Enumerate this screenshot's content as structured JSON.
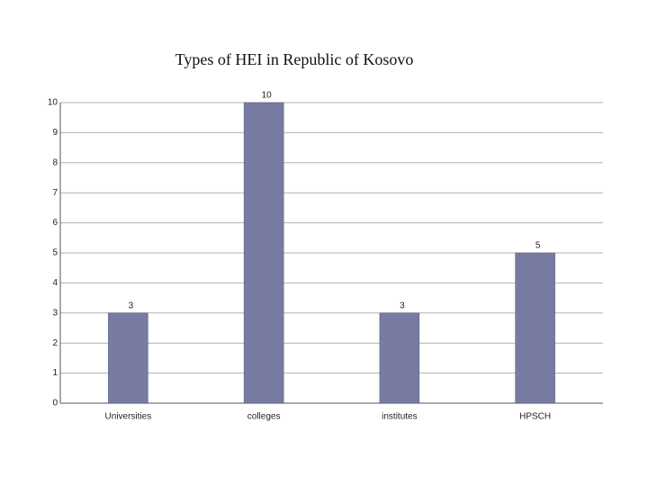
{
  "chart_data": {
    "type": "bar",
    "title": "Types of HEI in Republic of Kosovo",
    "categories": [
      "Universities",
      "colleges",
      "institutes",
      "HPSCH"
    ],
    "values": [
      3,
      10,
      3,
      5
    ],
    "color": "#777ba2",
    "ylim": [
      0,
      10
    ],
    "yticks": [
      0,
      1,
      2,
      3,
      4,
      5,
      6,
      7,
      8,
      9,
      10
    ],
    "grid": true
  }
}
